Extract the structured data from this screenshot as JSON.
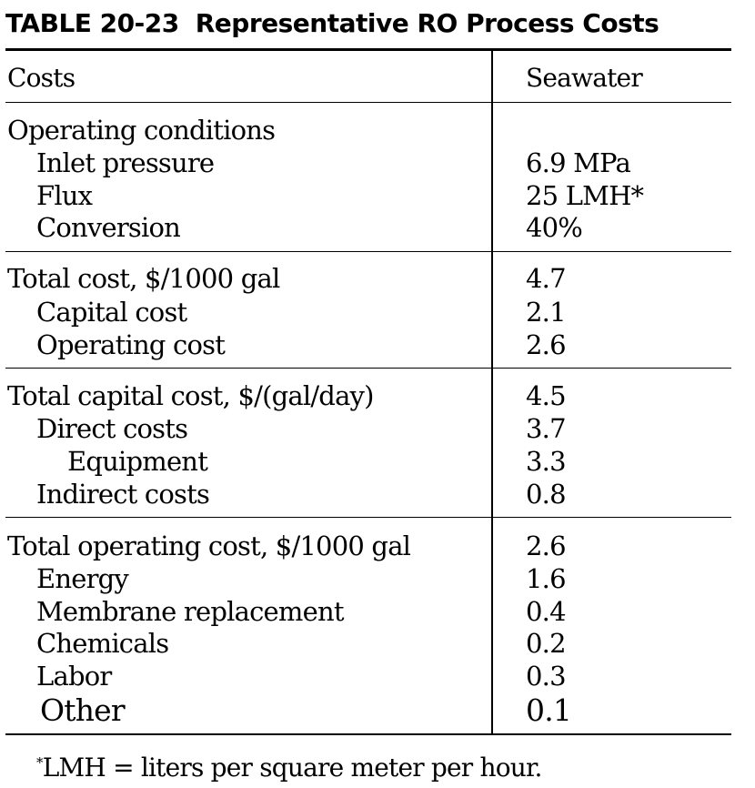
{
  "table": {
    "number": "TABLE 20-23",
    "title": "Representative RO Process Costs",
    "columns": [
      "Costs",
      "Seawater"
    ],
    "sections": [
      {
        "rows": [
          {
            "label": "Operating conditions",
            "value": ""
          },
          {
            "label": "Inlet pressure",
            "value": "6.9 MPa"
          },
          {
            "label": "Flux",
            "value": "25 LMH*"
          },
          {
            "label": "Conversion",
            "value": "40%"
          }
        ]
      },
      {
        "rows": [
          {
            "label": "Total cost, $/1000 gal",
            "value": "4.7"
          },
          {
            "label": "Capital cost",
            "value": "2.1"
          },
          {
            "label": "Operating cost",
            "value": "2.6"
          }
        ]
      },
      {
        "rows": [
          {
            "label": "Total capital cost, $/(gal/day)",
            "value": "4.5"
          },
          {
            "label": "Direct costs",
            "value": "3.7"
          },
          {
            "label": "Equipment",
            "value": "3.3"
          },
          {
            "label": "Indirect costs",
            "value": "0.8"
          }
        ]
      },
      {
        "rows": [
          {
            "label": "Total operating cost, $/1000 gal",
            "value": "2.6"
          },
          {
            "label": "Energy",
            "value": "1.6"
          },
          {
            "label": "Membrane replacement",
            "value": "0.4"
          },
          {
            "label": "Chemicals",
            "value": "0.2"
          },
          {
            "label": "Labor",
            "value": "0.3"
          },
          {
            "label": "Other",
            "value": "0.1"
          }
        ]
      }
    ],
    "footnote": {
      "marker": "*",
      "text": "LMH = liters per square meter per hour."
    }
  }
}
